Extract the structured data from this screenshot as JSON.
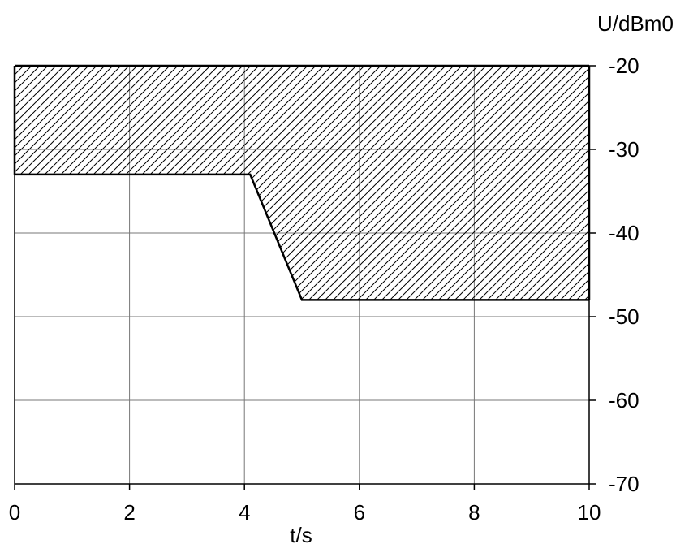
{
  "chart_data": {
    "type": "area",
    "xlabel": "t/s",
    "ylabel": "U/dBm0",
    "xlim": [
      0,
      10
    ],
    "ylim": [
      -70,
      -20
    ],
    "x_ticks": [
      0,
      2,
      4,
      6,
      8,
      10
    ],
    "x_tick_labels": [
      "0",
      "2",
      "4",
      "6",
      "8",
      "10"
    ],
    "y_ticks": [
      -20,
      -30,
      -40,
      -50,
      -60,
      -70
    ],
    "y_tick_labels": [
      "-20",
      "-30",
      "-40",
      "-50",
      "-60",
      "-70"
    ],
    "grid": true,
    "y_axis_side": "right",
    "upper_limit": {
      "x": [
        0,
        10
      ],
      "y": [
        -20,
        -20
      ]
    },
    "lower_limit": {
      "x": [
        0,
        4.1,
        5,
        10
      ],
      "y": [
        -33,
        -33,
        -48,
        -48
      ]
    },
    "fill_pattern": "diagonal-hatch",
    "colors": {
      "line": "#000000",
      "grid": "#777777",
      "hatch": "#000000"
    }
  }
}
